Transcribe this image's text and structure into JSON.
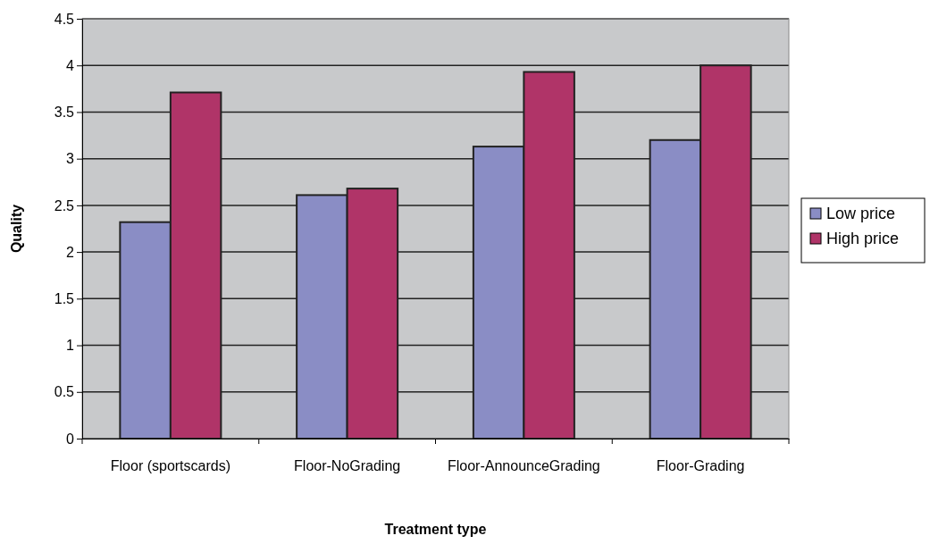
{
  "chart_data": {
    "type": "bar",
    "xlabel": "Treatment type",
    "ylabel": "Quality",
    "categories": [
      "Floor (sportscards)",
      "Floor-NoGrading",
      "Floor-AnnounceGrading",
      "Floor-Grading"
    ],
    "series": [
      {
        "name": "Low price",
        "color": "#8a8dc5",
        "values": [
          2.32,
          2.61,
          3.13,
          3.2
        ]
      },
      {
        "name": "High price",
        "color": "#b03468",
        "values": [
          3.71,
          2.68,
          3.93,
          4.0
        ]
      }
    ],
    "ylim": [
      0,
      4.5
    ],
    "yticks": [
      0,
      0.5,
      1,
      1.5,
      2,
      2.5,
      3,
      3.5,
      4,
      4.5
    ],
    "grid": "y",
    "legend": "right"
  }
}
